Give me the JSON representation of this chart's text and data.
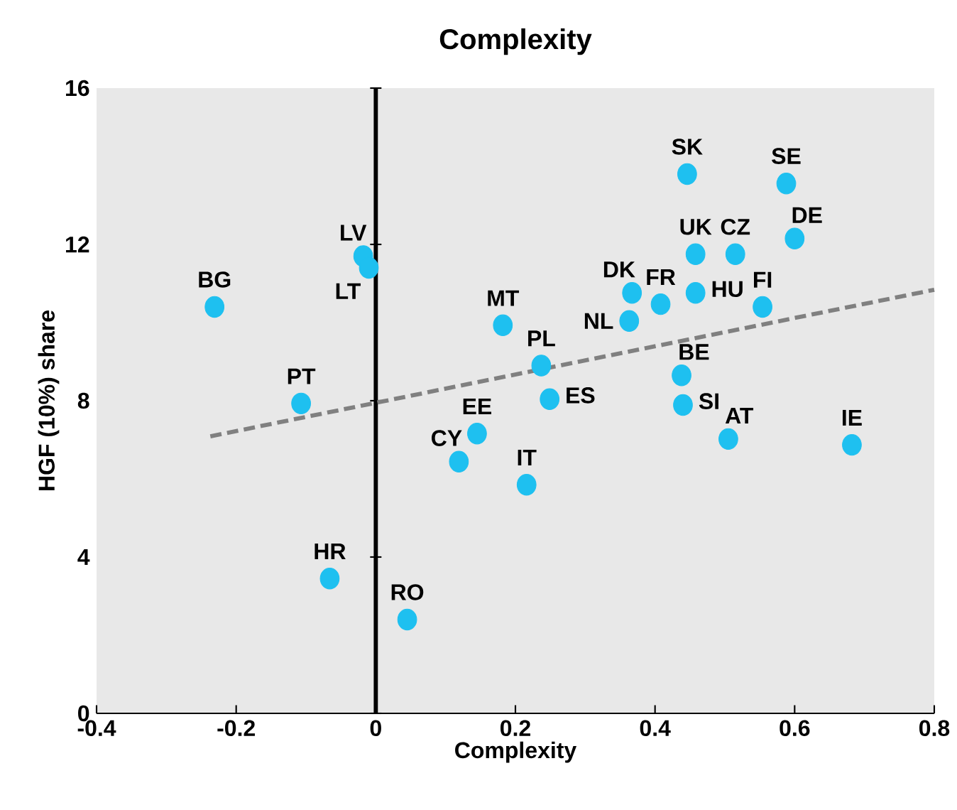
{
  "chart_data": {
    "type": "scatter",
    "title": "Complexity",
    "xlabel": "Complexity",
    "ylabel": "HGF (10%) share",
    "xlim": [
      -0.4,
      0.8
    ],
    "xticks": [
      -0.4,
      -0.2,
      0,
      0.2,
      0.4,
      0.6,
      0.8
    ],
    "ylim": [
      0,
      16
    ],
    "yticks": [
      0,
      4,
      8,
      12,
      16
    ],
    "grid": false,
    "series": [
      {
        "color": "#1ec0f0",
        "marker": "circle",
        "x": [
          -0.231,
          -0.107,
          -0.066,
          -0.018,
          -0.01,
          0.045,
          0.119,
          0.145,
          0.216,
          0.182,
          0.237,
          0.249,
          0.363,
          0.367,
          0.408,
          0.438,
          0.44,
          0.446,
          0.458,
          0.458,
          0.515,
          0.505,
          0.554,
          0.588,
          0.6,
          0.682
        ],
        "values": [
          10.4,
          7.93,
          3.45,
          11.7,
          11.4,
          2.4,
          6.44,
          7.16,
          5.85,
          9.93,
          8.9,
          8.04,
          10.04,
          10.76,
          10.47,
          8.65,
          7.89,
          13.8,
          11.75,
          10.76,
          11.75,
          7.02,
          10.4,
          13.56,
          12.15,
          6.87
        ]
      },
      {
        "type": "line",
        "color": "#808080",
        "line_style": "dashed",
        "marker": "none",
        "x": [
          -0.237,
          0.8
        ],
        "values": [
          7.09,
          10.84
        ]
      }
    ],
    "ref_lines": [
      {
        "axis": "x",
        "value": 0,
        "color": "#000000"
      }
    ],
    "annotations": [
      {
        "text": "BG",
        "x": -0.231,
        "y": 10.4
      },
      {
        "text": "PT",
        "x": -0.107,
        "y": 7.93
      },
      {
        "text": "HR",
        "x": -0.066,
        "y": 3.45
      },
      {
        "text": "LV",
        "x": -0.018,
        "y": 11.7
      },
      {
        "text": "LT",
        "x": -0.01,
        "y": 11.4
      },
      {
        "text": "RO",
        "x": 0.045,
        "y": 2.4
      },
      {
        "text": "CY",
        "x": 0.119,
        "y": 6.44
      },
      {
        "text": "EE",
        "x": 0.145,
        "y": 7.16
      },
      {
        "text": "IT",
        "x": 0.216,
        "y": 5.85
      },
      {
        "text": "MT",
        "x": 0.182,
        "y": 9.93
      },
      {
        "text": "PL",
        "x": 0.237,
        "y": 8.9
      },
      {
        "text": "ES",
        "x": 0.249,
        "y": 8.04
      },
      {
        "text": "NL",
        "x": 0.363,
        "y": 10.04
      },
      {
        "text": "DK",
        "x": 0.367,
        "y": 10.76
      },
      {
        "text": "FR",
        "x": 0.408,
        "y": 10.47
      },
      {
        "text": "BE",
        "x": 0.438,
        "y": 8.65
      },
      {
        "text": "SI",
        "x": 0.44,
        "y": 7.89
      },
      {
        "text": "SK",
        "x": 0.446,
        "y": 13.8
      },
      {
        "text": "UK",
        "x": 0.458,
        "y": 11.75
      },
      {
        "text": "HU",
        "x": 0.458,
        "y": 10.76
      },
      {
        "text": "CZ",
        "x": 0.515,
        "y": 11.75
      },
      {
        "text": "AT",
        "x": 0.505,
        "y": 7.02
      },
      {
        "text": "FI",
        "x": 0.554,
        "y": 10.4
      },
      {
        "text": "SE",
        "x": 0.588,
        "y": 13.56
      },
      {
        "text": "DE",
        "x": 0.6,
        "y": 12.15
      },
      {
        "text": "IE",
        "x": 0.682,
        "y": 6.87
      }
    ]
  }
}
